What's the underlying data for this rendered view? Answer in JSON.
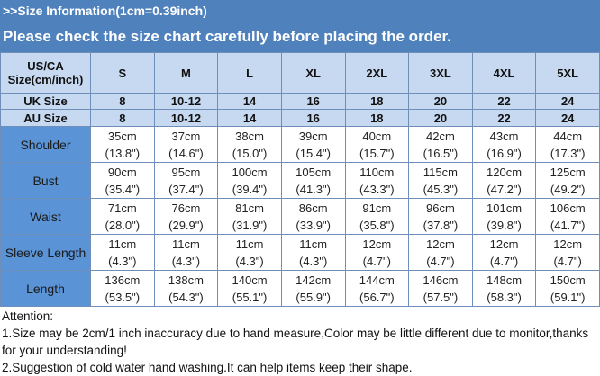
{
  "header": {
    "title": ">>Size Information(1cm=0.39inch)",
    "subtitle": "Please check the size chart carefully before placing the order."
  },
  "colors": {
    "band": "#4f81bd",
    "header_cells": "#c6d9f1",
    "label_cells": "#5a93d6"
  },
  "table": {
    "size_header": "US/CA Size(cm/inch)",
    "sizes": [
      "S",
      "M",
      "L",
      "XL",
      "2XL",
      "3XL",
      "4XL",
      "5XL"
    ],
    "uk": {
      "label": "UK Size",
      "values": [
        "8",
        "10-12",
        "14",
        "16",
        "18",
        "20",
        "22",
        "24"
      ]
    },
    "au": {
      "label": "AU Size",
      "values": [
        "8",
        "10-12",
        "14",
        "16",
        "18",
        "20",
        "22",
        "24"
      ]
    },
    "rows": [
      {
        "label": "Shoulder",
        "cm": [
          "35cm",
          "37cm",
          "38cm",
          "39cm",
          "40cm",
          "42cm",
          "43cm",
          "44cm"
        ],
        "inch": [
          "(13.8\")",
          "(14.6\")",
          "(15.0\")",
          "(15.4\")",
          "(15.7\")",
          "(16.5\")",
          "(16.9\")",
          "(17.3\")"
        ]
      },
      {
        "label": "Bust",
        "cm": [
          "90cm",
          "95cm",
          "100cm",
          "105cm",
          "110cm",
          "115cm",
          "120cm",
          "125cm"
        ],
        "inch": [
          "(35.4\")",
          "(37.4\")",
          "(39.4\")",
          "(41.3\")",
          "(43.3\")",
          "(45.3\")",
          "(47.2\")",
          "(49.2\")"
        ]
      },
      {
        "label": "Waist",
        "cm": [
          "71cm",
          "76cm",
          "81cm",
          "86cm",
          "91cm",
          "96cm",
          "101cm",
          "106cm"
        ],
        "inch": [
          "(28.0\")",
          "(29.9\")",
          "(31.9\")",
          "(33.9\")",
          "(35.8\")",
          "(37.8\")",
          "(39.8\")",
          "(41.7\")"
        ]
      },
      {
        "label": "Sleeve Length",
        "cm": [
          "11cm",
          "11cm",
          "11cm",
          "11cm",
          "12cm",
          "12cm",
          "12cm",
          "12cm"
        ],
        "inch": [
          "(4.3\")",
          "(4.3\")",
          "(4.3\")",
          "(4.3\")",
          "(4.7\")",
          "(4.7\")",
          "(4.7\")",
          "(4.7\")"
        ]
      },
      {
        "label": "Length",
        "cm": [
          "136cm",
          "138cm",
          "140cm",
          "142cm",
          "144cm",
          "146cm",
          "148cm",
          "150cm"
        ],
        "inch": [
          "(53.5\")",
          "(54.3\")",
          "(55.1\")",
          "(55.9\")",
          "(56.7\")",
          "(57.5\")",
          "(58.3\")",
          "(59.1\")"
        ]
      }
    ]
  },
  "attention": {
    "title": "Attention:",
    "notes": [
      "1.Size may be 2cm/1 inch inaccuracy due to hand measure,Color may be little different due to monitor,thanks for your understanding!",
      "2.Suggestion of cold water hand washing.It can help items keep their shape."
    ]
  }
}
